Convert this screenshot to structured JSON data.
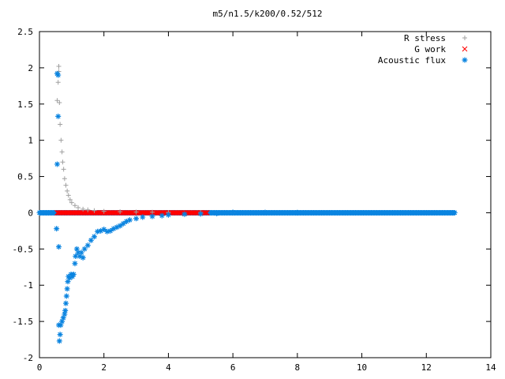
{
  "chart_data": {
    "type": "scatter",
    "title": "m5/n1.5/k200/0.52/512",
    "xlabel": "",
    "ylabel": "",
    "xlim": [
      0,
      14
    ],
    "ylim": [
      -2,
      2.5
    ],
    "x_ticks": [
      "0",
      "2",
      "4",
      "6",
      "8",
      "10",
      "12",
      "14"
    ],
    "y_ticks": [
      "-2",
      "-1.5",
      "-1",
      "-0.5",
      "0",
      "0.5",
      "1",
      "1.5",
      "2",
      "2.5"
    ],
    "grid": false,
    "legend_position": "top-right",
    "series": [
      {
        "name": "R stress",
        "marker": "plus",
        "color": "#a0a0a0",
        "points": [
          [
            0.55,
            1.55
          ],
          [
            0.58,
            1.8
          ],
          [
            0.6,
            2.02
          ],
          [
            0.6,
            1.95
          ],
          [
            0.62,
            1.52
          ],
          [
            0.64,
            1.22
          ],
          [
            0.67,
            1.0
          ],
          [
            0.7,
            0.84
          ],
          [
            0.72,
            0.7
          ],
          [
            0.75,
            0.6
          ],
          [
            0.78,
            0.47
          ],
          [
            0.82,
            0.38
          ],
          [
            0.86,
            0.3
          ],
          [
            0.9,
            0.24
          ],
          [
            0.95,
            0.18
          ],
          [
            1.0,
            0.14
          ],
          [
            1.1,
            0.1
          ],
          [
            1.2,
            0.07
          ],
          [
            1.35,
            0.05
          ],
          [
            1.5,
            0.04
          ],
          [
            1.7,
            0.03
          ],
          [
            2.0,
            0.02
          ],
          [
            2.5,
            0.015
          ],
          [
            3.0,
            0.01
          ],
          [
            3.5,
            0.007
          ],
          [
            4.0,
            0.005
          ],
          [
            5.0,
            0.003
          ],
          [
            6.0,
            0.002
          ]
        ]
      },
      {
        "name": "G work",
        "marker": "cross",
        "color": "#ff0000",
        "range": [
          0.55,
          5.2
        ],
        "y": 0
      },
      {
        "name": "Acoustic flux",
        "marker": "star",
        "color": "#0a84e0",
        "points": [
          [
            0.55,
            1.92
          ],
          [
            0.58,
            1.9
          ],
          [
            0.58,
            1.33
          ],
          [
            0.55,
            0.67
          ],
          [
            0.53,
            -0.22
          ],
          [
            0.6,
            -0.47
          ],
          [
            0.6,
            -1.55
          ],
          [
            0.62,
            -1.77
          ],
          [
            0.64,
            -1.68
          ],
          [
            0.66,
            -1.55
          ],
          [
            0.7,
            -1.5
          ],
          [
            0.74,
            -1.45
          ],
          [
            0.78,
            -1.4
          ],
          [
            0.8,
            -1.35
          ],
          [
            0.82,
            -1.25
          ],
          [
            0.84,
            -1.15
          ],
          [
            0.86,
            -1.05
          ],
          [
            0.88,
            -0.95
          ],
          [
            0.9,
            -0.88
          ],
          [
            0.94,
            -0.9
          ],
          [
            0.98,
            -0.85
          ],
          [
            1.02,
            -0.88
          ],
          [
            1.06,
            -0.85
          ],
          [
            1.1,
            -0.7
          ],
          [
            1.12,
            -0.6
          ],
          [
            1.16,
            -0.5
          ],
          [
            1.2,
            -0.55
          ],
          [
            1.25,
            -0.6
          ],
          [
            1.3,
            -0.55
          ],
          [
            1.35,
            -0.62
          ],
          [
            1.4,
            -0.5
          ],
          [
            1.5,
            -0.45
          ],
          [
            1.6,
            -0.38
          ],
          [
            1.7,
            -0.33
          ],
          [
            1.8,
            -0.26
          ],
          [
            1.9,
            -0.25
          ],
          [
            2.0,
            -0.23
          ],
          [
            2.1,
            -0.26
          ],
          [
            2.2,
            -0.25
          ],
          [
            2.3,
            -0.22
          ],
          [
            2.4,
            -0.2
          ],
          [
            2.5,
            -0.18
          ],
          [
            2.6,
            -0.15
          ],
          [
            2.7,
            -0.12
          ],
          [
            2.8,
            -0.1
          ],
          [
            3.0,
            -0.08
          ],
          [
            3.2,
            -0.06
          ],
          [
            3.5,
            -0.05
          ],
          [
            3.8,
            -0.04
          ],
          [
            4.0,
            -0.03
          ],
          [
            4.5,
            -0.02
          ],
          [
            5.0,
            -0.015
          ],
          [
            5.5,
            -0.01
          ],
          [
            6.0,
            0.005
          ],
          [
            7.0,
            0.003
          ],
          [
            8.0,
            0.002
          ]
        ],
        "baseline_range": [
          0,
          12.9
        ],
        "y": 0
      }
    ]
  }
}
